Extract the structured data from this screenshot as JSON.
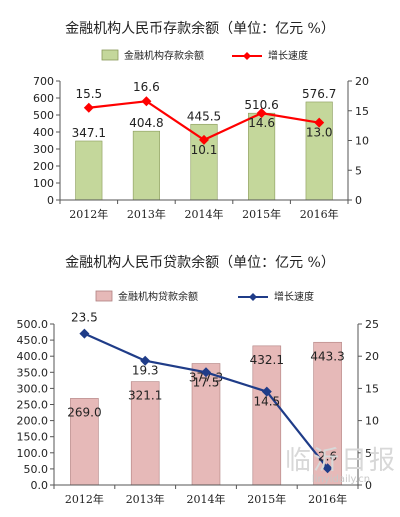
{
  "chart_data": [
    {
      "type": "bar+line",
      "title": "金融机构人民币存款余额（单位：亿元 %）",
      "categories": [
        "2012年",
        "2013年",
        "2014年",
        "2015年",
        "2016年"
      ],
      "series": [
        {
          "name": "金融机构存款余额",
          "type": "bar",
          "axis": "left",
          "values": [
            347.1,
            404.8,
            445.5,
            510.6,
            576.7
          ],
          "labels": [
            "347.1",
            "404.8",
            "445.5",
            "510.6",
            "576.7"
          ]
        },
        {
          "name": "增长速度",
          "type": "line",
          "axis": "right",
          "values": [
            15.5,
            16.6,
            10.1,
            14.6,
            13.0
          ],
          "labels": [
            "15.5",
            "16.6",
            "10.1",
            "14.6",
            "13.0"
          ]
        }
      ],
      "left_axis": {
        "min": 0,
        "max": 700,
        "step": 100,
        "ticks": [
          "0",
          "100",
          "200",
          "300",
          "400",
          "500",
          "600",
          "700"
        ]
      },
      "right_axis": {
        "min": 0,
        "max": 20,
        "step": 5,
        "ticks": [
          "0",
          "5",
          "10",
          "15",
          "20"
        ]
      },
      "grid": false,
      "legend_position": "top",
      "colors": {
        "bar_fill": "#c4d79b",
        "bar_stroke": "#8a9a5b",
        "line": "#ff0000",
        "marker": "#ff0000"
      }
    },
    {
      "type": "bar+line",
      "title": "金融机构人民币贷款余额（单位：亿元 %）",
      "categories": [
        "2012年",
        "2013年",
        "2014年",
        "2015年",
        "2016年"
      ],
      "series": [
        {
          "name": "金融机构贷款余额",
          "type": "bar",
          "axis": "left",
          "values": [
            269.0,
            321.1,
            377.3,
            432.1,
            443.3
          ],
          "labels": [
            "269.0",
            "321.1",
            "377.3",
            "432.1",
            "443.3"
          ]
        },
        {
          "name": "增长速度",
          "type": "line",
          "axis": "right",
          "values": [
            23.5,
            19.3,
            17.5,
            14.5,
            2.6
          ],
          "labels": [
            "23.5",
            "19.3",
            "17.5",
            "14.5",
            "2.6"
          ]
        }
      ],
      "left_axis": {
        "min": 0,
        "max": 500,
        "step": 50,
        "ticks": [
          "0.0",
          "50.0",
          "100.0",
          "150.0",
          "200.0",
          "250.0",
          "300.0",
          "350.0",
          "400.0",
          "450.0",
          "500.0"
        ]
      },
      "right_axis": {
        "min": 0,
        "max": 25,
        "step": 5,
        "ticks": [
          "0",
          "5",
          "10",
          "15",
          "20",
          "25"
        ]
      },
      "grid": false,
      "legend_position": "top",
      "colors": {
        "bar_fill": "#e6b9b8",
        "bar_stroke": "#b08080",
        "line": "#1f3c88",
        "marker": "#1f3c88"
      }
    }
  ],
  "watermark": {
    "text": "临沂日报",
    "url": "linyidaily.cn"
  }
}
